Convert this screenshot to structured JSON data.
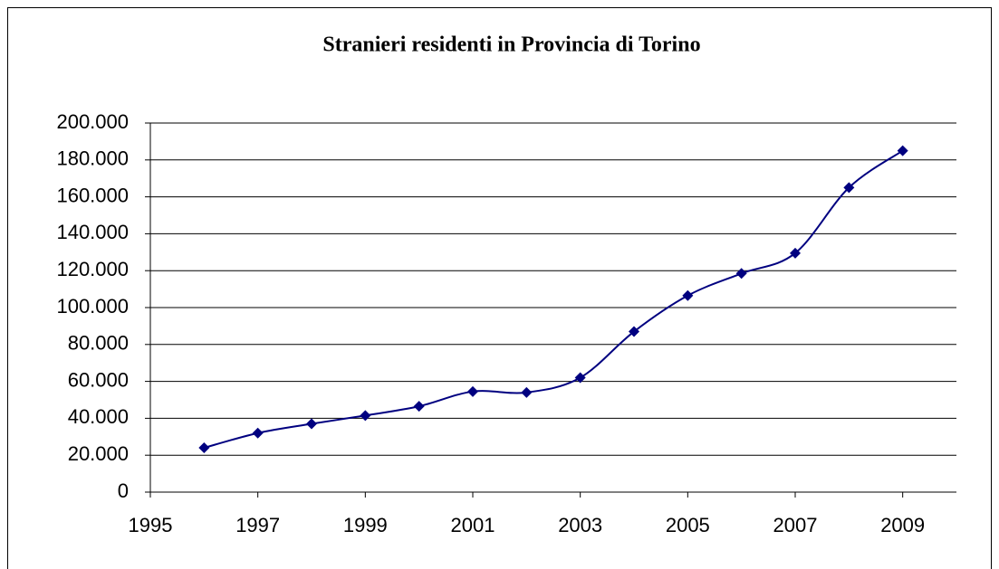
{
  "chart_data": {
    "type": "line",
    "title": "Stranieri residenti in Provincia di Torino",
    "x": [
      1996,
      1997,
      1998,
      1999,
      2000,
      2001,
      2002,
      2003,
      2004,
      2005,
      2006,
      2007,
      2008,
      2009
    ],
    "series": [
      {
        "color": "#000080",
        "values": [
          24000,
          32000,
          37000,
          41500,
          46500,
          54500,
          54000,
          62000,
          87000,
          106500,
          118500,
          129500,
          165000,
          185000
        ]
      }
    ],
    "smooth": true,
    "xlim": [
      1995,
      2010
    ],
    "xticks": [
      1995,
      1997,
      1999,
      2001,
      2003,
      2005,
      2007,
      2009
    ],
    "ylim": [
      0,
      200000
    ],
    "yticks": [
      0,
      {
        "value": 20000,
        "label": "20.000"
      },
      {
        "value": 40000,
        "label": "40.000"
      },
      {
        "value": 60000,
        "label": "60.000"
      },
      {
        "value": 80000,
        "label": "80.000"
      },
      {
        "value": 100000,
        "label": "100.000"
      },
      {
        "value": 120000,
        "label": "120.000"
      },
      {
        "value": 140000,
        "label": "140.000"
      },
      {
        "value": 160000,
        "label": "160.000"
      },
      {
        "value": 180000,
        "label": "180.000"
      },
      {
        "value": 200000,
        "label": "200.000"
      }
    ],
    "grid": true
  }
}
